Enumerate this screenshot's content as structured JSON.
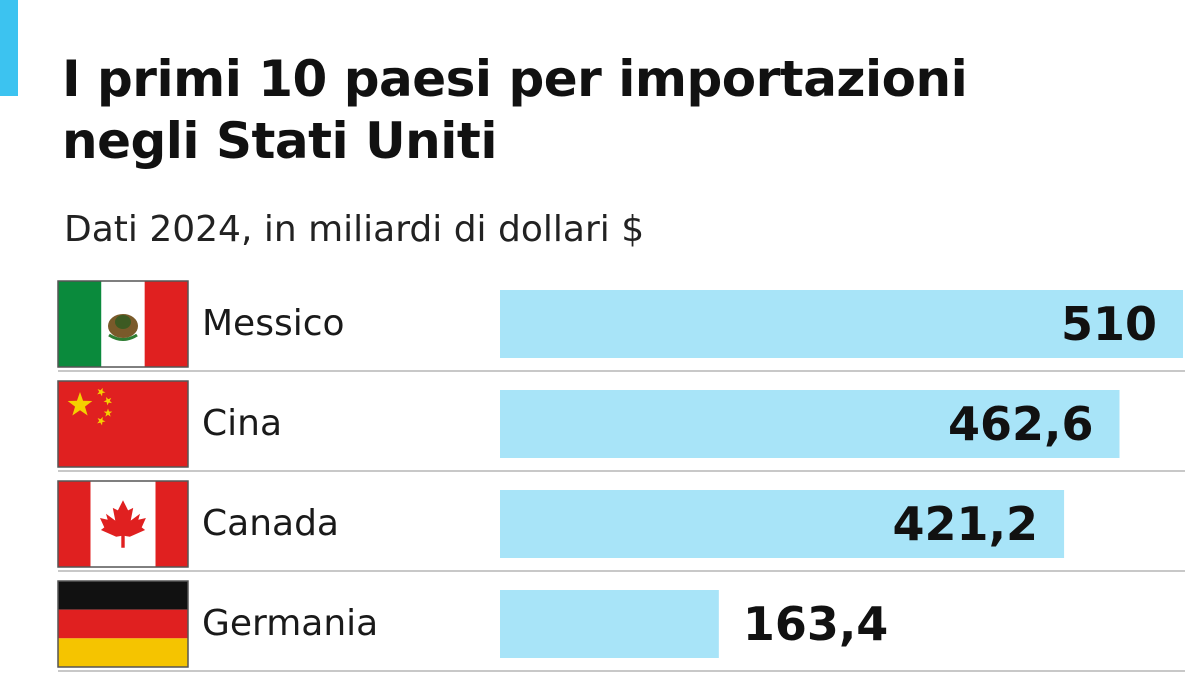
{
  "header": {
    "title_line1": "I primi 10 paesi per importazioni",
    "title_line2": "negli Stati Uniti",
    "subtitle": "Dati 2024, in miliardi di dollari $"
  },
  "colors": {
    "accent": "#3cc3f0",
    "bar": "#a8e4f8",
    "separator": "#c8c8c8",
    "flag_green": "#0a8a3c",
    "flag_red": "#e02020",
    "flag_yellow": "#f5d000",
    "flag_black": "#111111",
    "flag_gold": "#f5c400"
  },
  "chart_data": {
    "type": "bar",
    "orientation": "horizontal",
    "categories": [
      "Messico",
      "Cina",
      "Canada",
      "Germania"
    ],
    "values": [
      510,
      462.6,
      421.2,
      163.4
    ],
    "value_labels": [
      "510",
      "462,6",
      "421,2",
      "163,4"
    ],
    "flag_icons": [
      "mexico-flag-icon",
      "china-flag-icon",
      "canada-flag-icon",
      "germany-flag-icon"
    ],
    "title": "I primi 10 paesi per importazioni negli Stati Uniti",
    "subtitle": "Dati 2024, in miliardi di dollari $",
    "xlim": [
      0,
      510
    ],
    "grid": false,
    "legend": "none"
  }
}
